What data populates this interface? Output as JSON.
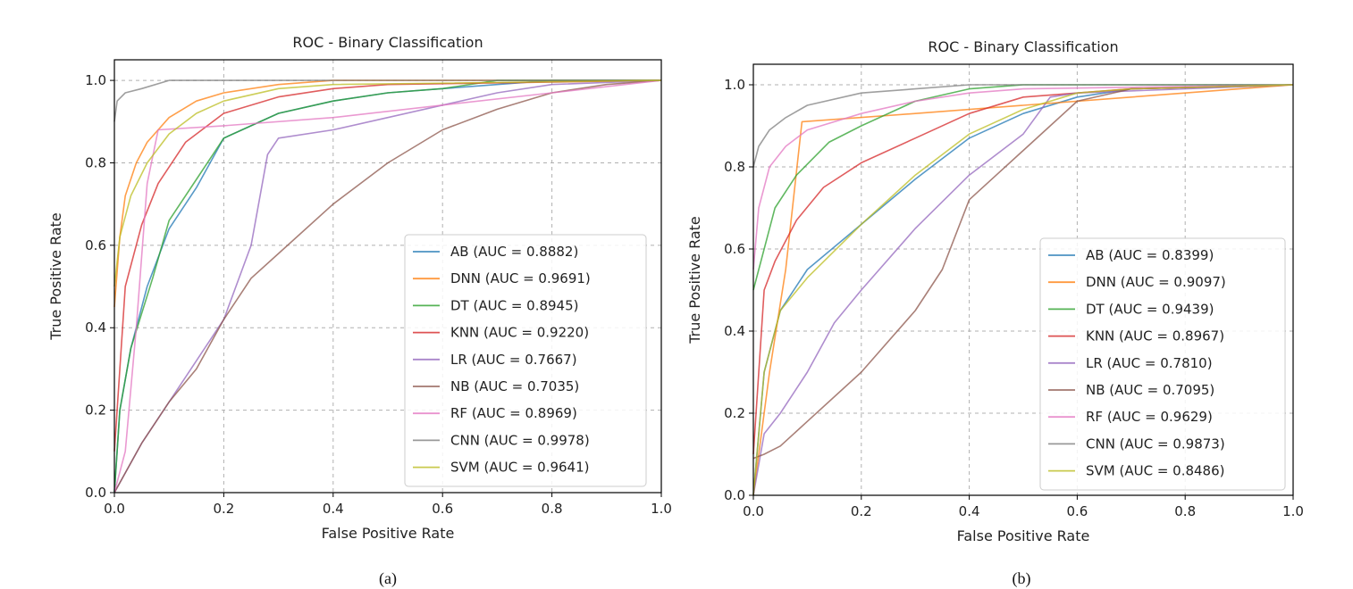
{
  "captions": [
    "(a)",
    "(b)"
  ],
  "chart_data": [
    {
      "type": "line",
      "title": "ROC - Binary Classification",
      "xlabel": "False Positive Rate",
      "ylabel": "True Positive Rate",
      "xlim": [
        0,
        1
      ],
      "ylim": [
        0,
        1.05
      ],
      "xticks": [
        "0.0",
        "0.2",
        "0.4",
        "0.6",
        "0.8",
        "1.0"
      ],
      "yticks": [
        "0.0",
        "0.2",
        "0.4",
        "0.6",
        "0.8",
        "1.0"
      ],
      "grid": true,
      "legend": "lower-right",
      "series": [
        {
          "name": "AB (AUC = 0.8882)",
          "color": "#1f77b4",
          "points": [
            [
              0,
              0
            ],
            [
              0.01,
              0.2
            ],
            [
              0.03,
              0.35
            ],
            [
              0.06,
              0.5
            ],
            [
              0.1,
              0.64
            ],
            [
              0.15,
              0.74
            ],
            [
              0.2,
              0.86
            ],
            [
              0.3,
              0.92
            ],
            [
              0.4,
              0.95
            ],
            [
              0.5,
              0.97
            ],
            [
              0.6,
              0.98
            ],
            [
              0.7,
              0.99
            ],
            [
              0.8,
              1
            ],
            [
              1,
              1
            ]
          ]
        },
        {
          "name": "DNN (AUC = 0.9691)",
          "color": "#ff7f0e",
          "points": [
            [
              0,
              0.45
            ],
            [
              0.01,
              0.62
            ],
            [
              0.02,
              0.72
            ],
            [
              0.04,
              0.8
            ],
            [
              0.06,
              0.85
            ],
            [
              0.1,
              0.91
            ],
            [
              0.15,
              0.95
            ],
            [
              0.2,
              0.97
            ],
            [
              0.3,
              0.99
            ],
            [
              0.4,
              1
            ],
            [
              1,
              1
            ]
          ]
        },
        {
          "name": "DT (AUC = 0.8945)",
          "color": "#2ca02c",
          "points": [
            [
              0,
              0
            ],
            [
              0.01,
              0.2
            ],
            [
              0.03,
              0.35
            ],
            [
              0.07,
              0.52
            ],
            [
              0.1,
              0.66
            ],
            [
              0.15,
              0.76
            ],
            [
              0.2,
              0.86
            ],
            [
              0.3,
              0.92
            ],
            [
              0.4,
              0.95
            ],
            [
              0.5,
              0.97
            ],
            [
              0.6,
              0.98
            ],
            [
              0.7,
              1
            ],
            [
              1,
              1
            ]
          ]
        },
        {
          "name": "KNN (AUC = 0.9220)",
          "color": "#d62728",
          "points": [
            [
              0,
              0.1
            ],
            [
              0.01,
              0.3
            ],
            [
              0.02,
              0.5
            ],
            [
              0.05,
              0.65
            ],
            [
              0.08,
              0.75
            ],
            [
              0.13,
              0.85
            ],
            [
              0.2,
              0.92
            ],
            [
              0.3,
              0.96
            ],
            [
              0.4,
              0.98
            ],
            [
              0.5,
              0.99
            ],
            [
              1,
              1
            ]
          ]
        },
        {
          "name": "LR (AUC = 0.7667)",
          "color": "#9467bd",
          "points": [
            [
              0,
              0
            ],
            [
              0.05,
              0.12
            ],
            [
              0.1,
              0.22
            ],
            [
              0.15,
              0.32
            ],
            [
              0.2,
              0.42
            ],
            [
              0.25,
              0.6
            ],
            [
              0.28,
              0.82
            ],
            [
              0.3,
              0.86
            ],
            [
              0.4,
              0.88
            ],
            [
              0.5,
              0.91
            ],
            [
              0.6,
              0.94
            ],
            [
              0.7,
              0.97
            ],
            [
              0.8,
              0.99
            ],
            [
              1,
              1
            ]
          ]
        },
        {
          "name": "NB (AUC = 0.7035)",
          "color": "#8c564b",
          "points": [
            [
              0,
              0
            ],
            [
              0.05,
              0.12
            ],
            [
              0.1,
              0.22
            ],
            [
              0.15,
              0.3
            ],
            [
              0.2,
              0.42
            ],
            [
              0.25,
              0.52
            ],
            [
              0.3,
              0.58
            ],
            [
              0.4,
              0.7
            ],
            [
              0.5,
              0.8
            ],
            [
              0.6,
              0.88
            ],
            [
              0.7,
              0.93
            ],
            [
              0.8,
              0.97
            ],
            [
              0.9,
              0.99
            ],
            [
              1,
              1
            ]
          ]
        },
        {
          "name": "RF (AUC = 0.8969)",
          "color": "#e377c2",
          "points": [
            [
              0,
              0
            ],
            [
              0.02,
              0.1
            ],
            [
              0.04,
              0.4
            ],
            [
              0.06,
              0.75
            ],
            [
              0.08,
              0.88
            ],
            [
              0.2,
              0.89
            ],
            [
              0.4,
              0.91
            ],
            [
              0.6,
              0.94
            ],
            [
              0.8,
              0.97
            ],
            [
              1,
              1
            ]
          ]
        },
        {
          "name": "CNN (AUC = 0.9978)",
          "color": "#7f7f7f",
          "points": [
            [
              0,
              0.9
            ],
            [
              0.005,
              0.95
            ],
            [
              0.02,
              0.97
            ],
            [
              0.05,
              0.98
            ],
            [
              0.1,
              1
            ],
            [
              1,
              1
            ]
          ]
        },
        {
          "name": "SVM (AUC = 0.9641)",
          "color": "#bcbd22",
          "points": [
            [
              0,
              0.5
            ],
            [
              0.01,
              0.62
            ],
            [
              0.03,
              0.72
            ],
            [
              0.06,
              0.8
            ],
            [
              0.1,
              0.87
            ],
            [
              0.15,
              0.92
            ],
            [
              0.2,
              0.95
            ],
            [
              0.3,
              0.98
            ],
            [
              0.4,
              0.99
            ],
            [
              1,
              1
            ]
          ]
        }
      ]
    },
    {
      "type": "line",
      "title": "ROC - Binary Classification",
      "xlabel": "False Positive Rate",
      "ylabel": "True Positive Rate",
      "xlim": [
        0,
        1
      ],
      "ylim": [
        0,
        1.05
      ],
      "xticks": [
        "0.0",
        "0.2",
        "0.4",
        "0.6",
        "0.8",
        "1.0"
      ],
      "yticks": [
        "0.0",
        "0.2",
        "0.4",
        "0.6",
        "0.8",
        "1.0"
      ],
      "grid": true,
      "legend": "lower-right",
      "series": [
        {
          "name": "AB (AUC = 0.8399)",
          "color": "#1f77b4",
          "points": [
            [
              0,
              0
            ],
            [
              0.02,
              0.3
            ],
            [
              0.05,
              0.45
            ],
            [
              0.1,
              0.55
            ],
            [
              0.2,
              0.66
            ],
            [
              0.3,
              0.77
            ],
            [
              0.4,
              0.87
            ],
            [
              0.5,
              0.93
            ],
            [
              0.6,
              0.97
            ],
            [
              0.7,
              0.99
            ],
            [
              1,
              1
            ]
          ]
        },
        {
          "name": "DNN (AUC = 0.9097)",
          "color": "#ff7f0e",
          "points": [
            [
              0,
              0
            ],
            [
              0.03,
              0.3
            ],
            [
              0.06,
              0.55
            ],
            [
              0.09,
              0.91
            ],
            [
              0.3,
              0.93
            ],
            [
              0.5,
              0.95
            ],
            [
              0.7,
              0.97
            ],
            [
              0.9,
              0.99
            ],
            [
              1,
              1
            ]
          ]
        },
        {
          "name": "DT (AUC = 0.9439)",
          "color": "#2ca02c",
          "points": [
            [
              0,
              0.5
            ],
            [
              0.04,
              0.7
            ],
            [
              0.08,
              0.78
            ],
            [
              0.14,
              0.86
            ],
            [
              0.2,
              0.9
            ],
            [
              0.3,
              0.96
            ],
            [
              0.4,
              0.99
            ],
            [
              0.5,
              1
            ],
            [
              1,
              1
            ]
          ]
        },
        {
          "name": "KNN (AUC = 0.8967)",
          "color": "#d62728",
          "points": [
            [
              0,
              0.1
            ],
            [
              0.02,
              0.5
            ],
            [
              0.04,
              0.57
            ],
            [
              0.08,
              0.67
            ],
            [
              0.13,
              0.75
            ],
            [
              0.2,
              0.81
            ],
            [
              0.3,
              0.87
            ],
            [
              0.4,
              0.93
            ],
            [
              0.5,
              0.97
            ],
            [
              0.6,
              0.98
            ],
            [
              0.7,
              0.99
            ],
            [
              1,
              1
            ]
          ]
        },
        {
          "name": "LR (AUC = 0.7810)",
          "color": "#9467bd",
          "points": [
            [
              0,
              0
            ],
            [
              0.02,
              0.15
            ],
            [
              0.05,
              0.2
            ],
            [
              0.1,
              0.3
            ],
            [
              0.15,
              0.42
            ],
            [
              0.2,
              0.5
            ],
            [
              0.3,
              0.65
            ],
            [
              0.4,
              0.78
            ],
            [
              0.5,
              0.88
            ],
            [
              0.55,
              0.97
            ],
            [
              0.6,
              0.98
            ],
            [
              1,
              1
            ]
          ]
        },
        {
          "name": "NB (AUC = 0.7095)",
          "color": "#8c564b",
          "points": [
            [
              0,
              0.09
            ],
            [
              0.02,
              0.1
            ],
            [
              0.05,
              0.12
            ],
            [
              0.1,
              0.18
            ],
            [
              0.2,
              0.3
            ],
            [
              0.3,
              0.45
            ],
            [
              0.35,
              0.55
            ],
            [
              0.4,
              0.72
            ],
            [
              0.45,
              0.78
            ],
            [
              0.5,
              0.84
            ],
            [
              0.55,
              0.9
            ],
            [
              0.6,
              0.96
            ],
            [
              0.7,
              0.99
            ],
            [
              1,
              1
            ]
          ]
        },
        {
          "name": "RF (AUC = 0.9629)",
          "color": "#e377c2",
          "points": [
            [
              0,
              0.55
            ],
            [
              0.01,
              0.7
            ],
            [
              0.03,
              0.8
            ],
            [
              0.06,
              0.85
            ],
            [
              0.1,
              0.89
            ],
            [
              0.2,
              0.93
            ],
            [
              0.3,
              0.96
            ],
            [
              0.4,
              0.98
            ],
            [
              0.5,
              0.99
            ],
            [
              1,
              1
            ]
          ]
        },
        {
          "name": "CNN (AUC = 0.9873)",
          "color": "#7f7f7f",
          "points": [
            [
              0,
              0.8
            ],
            [
              0.01,
              0.85
            ],
            [
              0.03,
              0.89
            ],
            [
              0.06,
              0.92
            ],
            [
              0.1,
              0.95
            ],
            [
              0.2,
              0.98
            ],
            [
              0.3,
              0.99
            ],
            [
              0.4,
              1
            ],
            [
              1,
              1
            ]
          ]
        },
        {
          "name": "SVM (AUC = 0.8486)",
          "color": "#bcbd22",
          "points": [
            [
              0,
              0
            ],
            [
              0.02,
              0.3
            ],
            [
              0.05,
              0.45
            ],
            [
              0.1,
              0.53
            ],
            [
              0.2,
              0.66
            ],
            [
              0.3,
              0.78
            ],
            [
              0.4,
              0.88
            ],
            [
              0.5,
              0.94
            ],
            [
              0.6,
              0.98
            ],
            [
              0.7,
              0.99
            ],
            [
              1,
              1
            ]
          ]
        }
      ]
    }
  ]
}
